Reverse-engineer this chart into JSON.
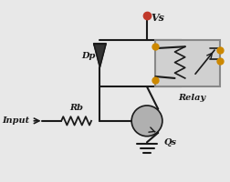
{
  "bg_color": "#e8e8e8",
  "line_color": "#1a1a1a",
  "relay_box_color": "#d0d0d0",
  "relay_box_edge": "#888888",
  "dot_color": "#c0392b",
  "dot_orange": "#cc8800",
  "transistor_circle_color": "#b0b0b0",
  "title": "",
  "vs_label": "Vs",
  "dp_label": "Dp",
  "rb_label": "Rb",
  "qs_label": "Qs",
  "relay_label": "Relay",
  "input_label": "Input"
}
